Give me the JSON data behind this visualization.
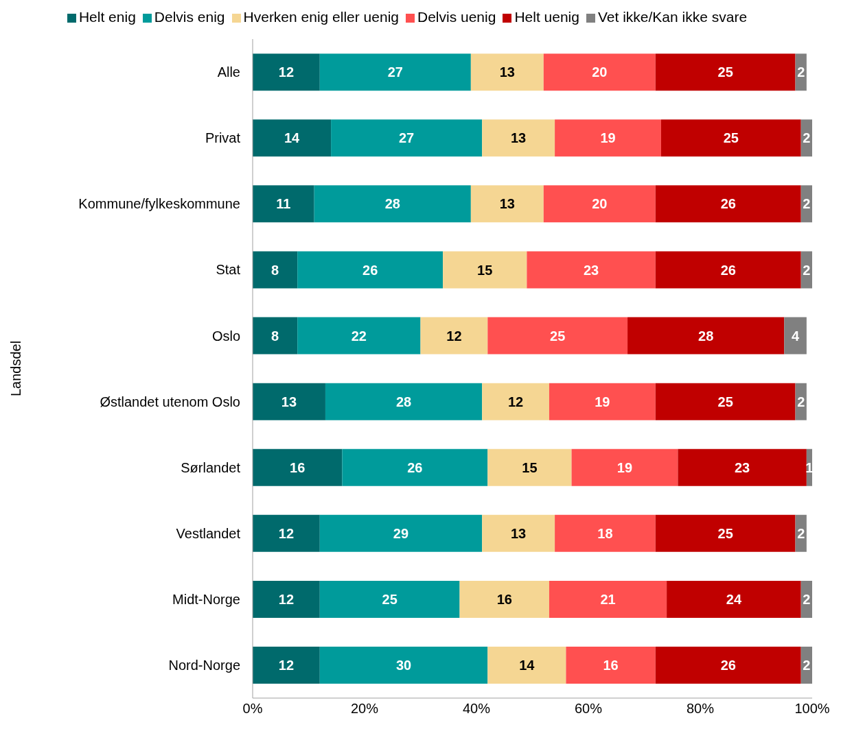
{
  "chart_data": {
    "type": "bar",
    "orientation": "horizontal",
    "stacked": true,
    "ylabel": "Landsdel",
    "categories": [
      "Alle",
      "Privat",
      "Kommune/fylkeskommune",
      "Stat",
      "Oslo",
      "Østlandet utenom Oslo",
      "Sørlandet",
      "Vestlandet",
      "Midt-Norge",
      "Nord-Norge"
    ],
    "series": [
      {
        "name": "Helt enig",
        "color": "#006a6c",
        "values": [
          12,
          14,
          11,
          8,
          8,
          13,
          16,
          12,
          12,
          12
        ]
      },
      {
        "name": "Delvis enig",
        "color": "#009b9b",
        "values": [
          27,
          27,
          28,
          26,
          22,
          28,
          26,
          29,
          25,
          30
        ]
      },
      {
        "name": "Hverken enig eller uenig",
        "color": "#f5d693",
        "values": [
          13,
          13,
          13,
          15,
          12,
          12,
          15,
          13,
          16,
          14
        ]
      },
      {
        "name": "Delvis uenig",
        "color": "#ff5050",
        "values": [
          20,
          19,
          20,
          23,
          25,
          19,
          19,
          18,
          21,
          16
        ]
      },
      {
        "name": "Helt uenig",
        "color": "#c00000",
        "values": [
          25,
          25,
          26,
          26,
          28,
          25,
          23,
          25,
          24,
          26
        ]
      },
      {
        "name": "Vet ikke/Kan ikke svare",
        "color": "#808080",
        "values": [
          2,
          2,
          2,
          2,
          4,
          2,
          1,
          2,
          2,
          2
        ]
      }
    ],
    "xlim": [
      0,
      100
    ],
    "xticks": [
      {
        "value": 0,
        "label": "0%"
      },
      {
        "value": 20,
        "label": "20%"
      },
      {
        "value": 40,
        "label": "40%"
      },
      {
        "value": 60,
        "label": "60%"
      },
      {
        "value": 80,
        "label": "80%"
      },
      {
        "value": 100,
        "label": "100%"
      }
    ],
    "data_labels": true,
    "grid": false,
    "legend": "top"
  }
}
